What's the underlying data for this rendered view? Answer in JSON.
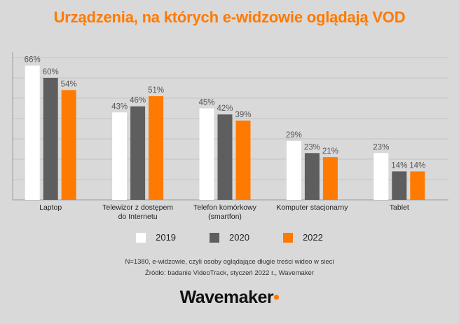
{
  "title": "Urządzenia, na których e-widzowie oglądają VOD",
  "chart_data": {
    "type": "bar",
    "title": "Urządzenia, na których e-widzowie oglądają VOD",
    "categories": [
      [
        "Laptop"
      ],
      [
        "Telewizor z dostępem",
        "do Internetu"
      ],
      [
        "Telefon komórkowy",
        "(smartfon)"
      ],
      [
        "Komputer stacjonarny"
      ],
      [
        "Tablet"
      ]
    ],
    "series": [
      {
        "name": "2019",
        "color": "#ffffff",
        "values": [
          66,
          43,
          45,
          29,
          23
        ]
      },
      {
        "name": "2020",
        "color": "#5e5e5e",
        "values": [
          60,
          46,
          42,
          23,
          14
        ]
      },
      {
        "name": "2022",
        "color": "#ff7a00",
        "values": [
          54,
          51,
          39,
          21,
          14
        ]
      }
    ],
    "value_suffix": "%",
    "ylim": [
      0,
      70
    ],
    "ytick_step": 10,
    "xlabel": "",
    "ylabel": "",
    "grid": true,
    "legend": "bottom-center"
  },
  "legend": {
    "item_0": "2019",
    "item_1": "2020",
    "item_2": "2022"
  },
  "notes": {
    "line1": "N=1380, e-widzowie, czyli osoby oglądające długie treści wideo w sieci",
    "line2": "Źródło: badanie VideoTrack, styczeń 2022 r., Wavemaker"
  },
  "brand": {
    "name": "Wavemaker",
    "dot": "•"
  }
}
